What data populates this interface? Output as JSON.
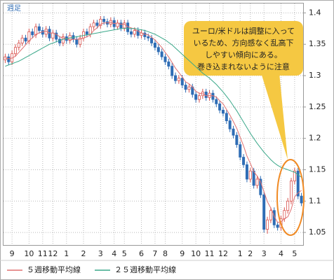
{
  "chart_data": {
    "type": "candlestick",
    "period_label": "週足",
    "categories": [
      null,
      null,
      "9",
      null,
      null,
      null,
      null,
      "10",
      null,
      null,
      null,
      "11",
      null,
      null,
      "12",
      null,
      null,
      null,
      "1",
      null,
      null,
      null,
      null,
      "2",
      null,
      null,
      null,
      null,
      "3",
      null,
      null,
      null,
      "4",
      null,
      null,
      "5",
      null,
      null,
      null,
      null,
      "6",
      null,
      null,
      null,
      "7",
      null,
      null,
      "8",
      null,
      null,
      null,
      null,
      "9",
      null,
      null,
      null,
      "10",
      null,
      null,
      null,
      "11",
      null,
      null,
      null,
      "12",
      null,
      null,
      null,
      null,
      "1",
      null,
      null,
      "2",
      null,
      null,
      null,
      "3",
      null,
      null,
      null,
      null,
      "4",
      null,
      null,
      null,
      "5",
      null,
      null
    ],
    "open": [
      1.325,
      1.33,
      1.322,
      1.335,
      1.345,
      1.352,
      1.36,
      1.355,
      1.37,
      1.365,
      1.378,
      1.372,
      1.366,
      1.374,
      1.36,
      1.368,
      1.358,
      1.352,
      1.362,
      1.356,
      1.364,
      1.358,
      1.35,
      1.36,
      1.37,
      1.366,
      1.378,
      1.384,
      1.38,
      1.39,
      1.386,
      1.382,
      1.388,
      1.378,
      1.384,
      1.376,
      1.384,
      1.37,
      1.366,
      1.372,
      1.364,
      1.368,
      1.362,
      1.36,
      1.352,
      1.345,
      1.338,
      1.33,
      1.322,
      1.315,
      1.3,
      1.292,
      1.296,
      1.285,
      1.278,
      1.282,
      1.27,
      1.262,
      1.268,
      1.274,
      1.265,
      1.272,
      1.262,
      1.255,
      1.245,
      1.24,
      1.228,
      1.215,
      1.205,
      1.19,
      1.17,
      1.158,
      1.135,
      1.148,
      1.125,
      1.135,
      1.11,
      1.055,
      1.07,
      1.085,
      1.062,
      1.058,
      1.072,
      1.085,
      1.1,
      1.132,
      1.148,
      1.108
    ],
    "high": [
      1.335,
      1.335,
      1.34,
      1.35,
      1.357,
      1.365,
      1.365,
      1.375,
      1.375,
      1.383,
      1.383,
      1.377,
      1.379,
      1.379,
      1.373,
      1.373,
      1.363,
      1.367,
      1.367,
      1.369,
      1.369,
      1.363,
      1.365,
      1.375,
      1.375,
      1.383,
      1.389,
      1.389,
      1.395,
      1.395,
      1.391,
      1.393,
      1.393,
      1.389,
      1.389,
      1.389,
      1.389,
      1.375,
      1.377,
      1.377,
      1.373,
      1.373,
      1.367,
      1.365,
      1.357,
      1.35,
      1.343,
      1.335,
      1.327,
      1.32,
      1.305,
      1.301,
      1.301,
      1.29,
      1.287,
      1.287,
      1.275,
      1.273,
      1.279,
      1.279,
      1.277,
      1.277,
      1.267,
      1.26,
      1.25,
      1.245,
      1.233,
      1.22,
      1.21,
      1.195,
      1.175,
      1.163,
      1.153,
      1.153,
      1.14,
      1.14,
      1.115,
      1.075,
      1.09,
      1.09,
      1.067,
      1.077,
      1.09,
      1.105,
      1.137,
      1.153,
      1.153,
      1.113
    ],
    "low": [
      1.32,
      1.317,
      1.317,
      1.33,
      1.34,
      1.347,
      1.35,
      1.35,
      1.36,
      1.36,
      1.367,
      1.361,
      1.361,
      1.355,
      1.355,
      1.353,
      1.347,
      1.347,
      1.351,
      1.351,
      1.353,
      1.345,
      1.345,
      1.355,
      1.361,
      1.361,
      1.373,
      1.375,
      1.375,
      1.381,
      1.377,
      1.377,
      1.373,
      1.373,
      1.371,
      1.371,
      1.365,
      1.361,
      1.361,
      1.359,
      1.359,
      1.357,
      1.355,
      1.347,
      1.34,
      1.333,
      1.325,
      1.317,
      1.31,
      1.295,
      1.287,
      1.287,
      1.28,
      1.273,
      1.273,
      1.265,
      1.257,
      1.257,
      1.263,
      1.26,
      1.26,
      1.257,
      1.25,
      1.24,
      1.235,
      1.223,
      1.21,
      1.2,
      1.185,
      1.165,
      1.153,
      1.13,
      1.13,
      1.12,
      1.12,
      1.105,
      1.05,
      1.048,
      1.065,
      1.057,
      1.053,
      1.053,
      1.067,
      1.08,
      1.095,
      1.127,
      1.103,
      1.092
    ],
    "close": [
      1.33,
      1.322,
      1.335,
      1.345,
      1.352,
      1.36,
      1.355,
      1.37,
      1.365,
      1.378,
      1.372,
      1.366,
      1.374,
      1.36,
      1.368,
      1.358,
      1.352,
      1.362,
      1.356,
      1.364,
      1.358,
      1.35,
      1.36,
      1.37,
      1.366,
      1.378,
      1.384,
      1.38,
      1.39,
      1.386,
      1.382,
      1.388,
      1.378,
      1.384,
      1.376,
      1.384,
      1.37,
      1.366,
      1.372,
      1.364,
      1.368,
      1.362,
      1.36,
      1.352,
      1.345,
      1.338,
      1.33,
      1.322,
      1.315,
      1.3,
      1.292,
      1.296,
      1.285,
      1.278,
      1.282,
      1.27,
      1.262,
      1.268,
      1.274,
      1.265,
      1.272,
      1.262,
      1.255,
      1.245,
      1.24,
      1.228,
      1.215,
      1.205,
      1.19,
      1.17,
      1.158,
      1.135,
      1.148,
      1.125,
      1.135,
      1.11,
      1.055,
      1.07,
      1.085,
      1.062,
      1.058,
      1.072,
      1.085,
      1.1,
      1.132,
      1.148,
      1.108,
      1.097
    ],
    "up_color": "#d9534f",
    "down_color": "#2f6db5",
    "series": [
      {
        "name": "５週移動平均線",
        "color": "#e07070",
        "values": [
          1.328,
          1.327,
          1.328,
          1.331,
          1.337,
          1.343,
          1.349,
          1.356,
          1.36,
          1.366,
          1.368,
          1.37,
          1.371,
          1.368,
          1.368,
          1.366,
          1.362,
          1.36,
          1.359,
          1.357,
          1.358,
          1.358,
          1.358,
          1.36,
          1.362,
          1.365,
          1.372,
          1.376,
          1.382,
          1.384,
          1.384,
          1.385,
          1.383,
          1.384,
          1.382,
          1.382,
          1.378,
          1.376,
          1.374,
          1.371,
          1.368,
          1.366,
          1.365,
          1.361,
          1.357,
          1.351,
          1.345,
          1.337,
          1.33,
          1.321,
          1.312,
          1.305,
          1.298,
          1.29,
          1.287,
          1.282,
          1.275,
          1.272,
          1.271,
          1.268,
          1.268,
          1.268,
          1.266,
          1.26,
          1.255,
          1.246,
          1.237,
          1.227,
          1.216,
          1.202,
          1.188,
          1.172,
          1.16,
          1.147,
          1.14,
          1.131,
          1.115,
          1.099,
          1.089,
          1.076,
          1.066,
          1.067,
          1.072,
          1.075,
          1.087,
          1.107,
          1.113,
          1.117
        ]
      },
      {
        "name": "２５週移動平均線",
        "color": "#3aa88a",
        "values": [
          1.315,
          1.317,
          1.319,
          1.321,
          1.323,
          1.326,
          1.329,
          1.332,
          1.335,
          1.338,
          1.341,
          1.344,
          1.347,
          1.35,
          1.352,
          1.354,
          1.356,
          1.358,
          1.359,
          1.36,
          1.361,
          1.362,
          1.363,
          1.364,
          1.365,
          1.366,
          1.367,
          1.368,
          1.369,
          1.37,
          1.371,
          1.372,
          1.373,
          1.374,
          1.375,
          1.375,
          1.375,
          1.375,
          1.375,
          1.374,
          1.373,
          1.372,
          1.37,
          1.368,
          1.366,
          1.363,
          1.36,
          1.357,
          1.353,
          1.349,
          1.344,
          1.339,
          1.334,
          1.329,
          1.324,
          1.319,
          1.314,
          1.309,
          1.304,
          1.3,
          1.296,
          1.291,
          1.286,
          1.28,
          1.274,
          1.267,
          1.26,
          1.252,
          1.244,
          1.235,
          1.226,
          1.217,
          1.208,
          1.2,
          1.192,
          1.185,
          1.178,
          1.172,
          1.166,
          1.161,
          1.157,
          1.154,
          1.152,
          1.15,
          1.148,
          1.146,
          1.142,
          1.138
        ]
      }
    ],
    "ylim": [
      1.03,
      1.415
    ],
    "yticks": [
      1.05,
      1.1,
      1.15,
      1.2,
      1.25,
      1.3,
      1.35,
      1.4
    ],
    "grid": true,
    "annotation": [
      "ユーロ/米ドルは調整に入って",
      "いるため、方向感なく乱高下",
      "しやすい傾向にある。",
      "巻き込まれないように注意"
    ]
  }
}
